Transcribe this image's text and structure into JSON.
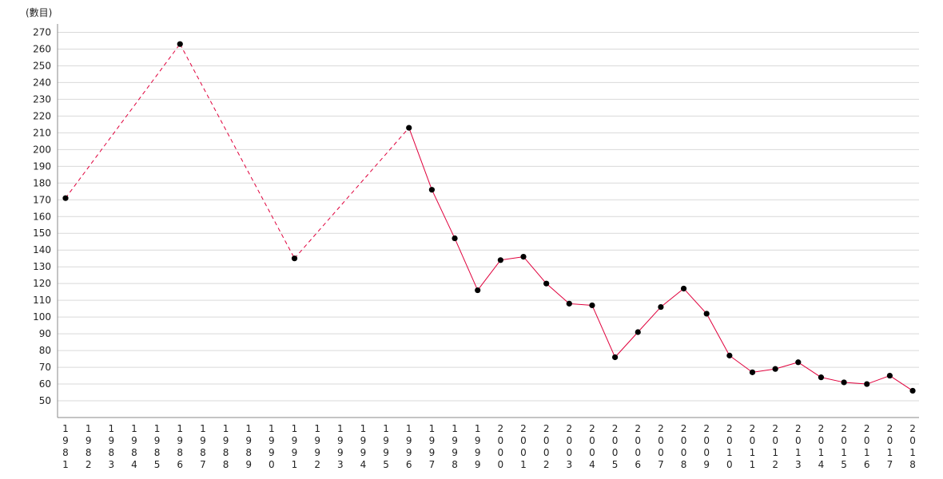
{
  "chart_data": {
    "type": "line",
    "ylabel": "(數目)",
    "ylim": [
      40,
      275
    ],
    "yticks": [
      50,
      60,
      70,
      80,
      90,
      100,
      110,
      120,
      130,
      140,
      150,
      160,
      170,
      180,
      190,
      200,
      210,
      220,
      230,
      240,
      250,
      260,
      270
    ],
    "grid": true,
    "line_color": "#e0003c",
    "marker_color": "#000000",
    "categories": [
      "1981",
      "1982",
      "1983",
      "1984",
      "1985",
      "1986",
      "1987",
      "1988",
      "1989",
      "1990",
      "1991",
      "1992",
      "1993",
      "1994",
      "1995",
      "1996",
      "1997",
      "1998",
      "1999",
      "2000",
      "2001",
      "2002",
      "2003",
      "2004",
      "2005",
      "2006",
      "2007",
      "2008",
      "2009",
      "2010",
      "2011",
      "2012",
      "2013",
      "2014",
      "2015",
      "2016",
      "2017",
      "2018"
    ],
    "points": [
      {
        "x": "1981",
        "y": 171
      },
      {
        "x": "1986",
        "y": 263
      },
      {
        "x": "1991",
        "y": 135
      },
      {
        "x": "1996",
        "y": 213
      },
      {
        "x": "1997",
        "y": 176
      },
      {
        "x": "1998",
        "y": 147
      },
      {
        "x": "1999",
        "y": 116
      },
      {
        "x": "2000",
        "y": 134
      },
      {
        "x": "2001",
        "y": 136
      },
      {
        "x": "2002",
        "y": 120
      },
      {
        "x": "2003",
        "y": 108
      },
      {
        "x": "2004",
        "y": 107
      },
      {
        "x": "2005",
        "y": 76
      },
      {
        "x": "2006",
        "y": 91
      },
      {
        "x": "2007",
        "y": 106
      },
      {
        "x": "2008",
        "y": 117
      },
      {
        "x": "2009",
        "y": 102
      },
      {
        "x": "2010",
        "y": 77
      },
      {
        "x": "2011",
        "y": 67
      },
      {
        "x": "2012",
        "y": 69
      },
      {
        "x": "2013",
        "y": 73
      },
      {
        "x": "2014",
        "y": 64
      },
      {
        "x": "2015",
        "y": 61
      },
      {
        "x": "2016",
        "y": 60
      },
      {
        "x": "2017",
        "y": 65
      },
      {
        "x": "2018",
        "y": 56
      }
    ],
    "dashed_until": "1996"
  }
}
